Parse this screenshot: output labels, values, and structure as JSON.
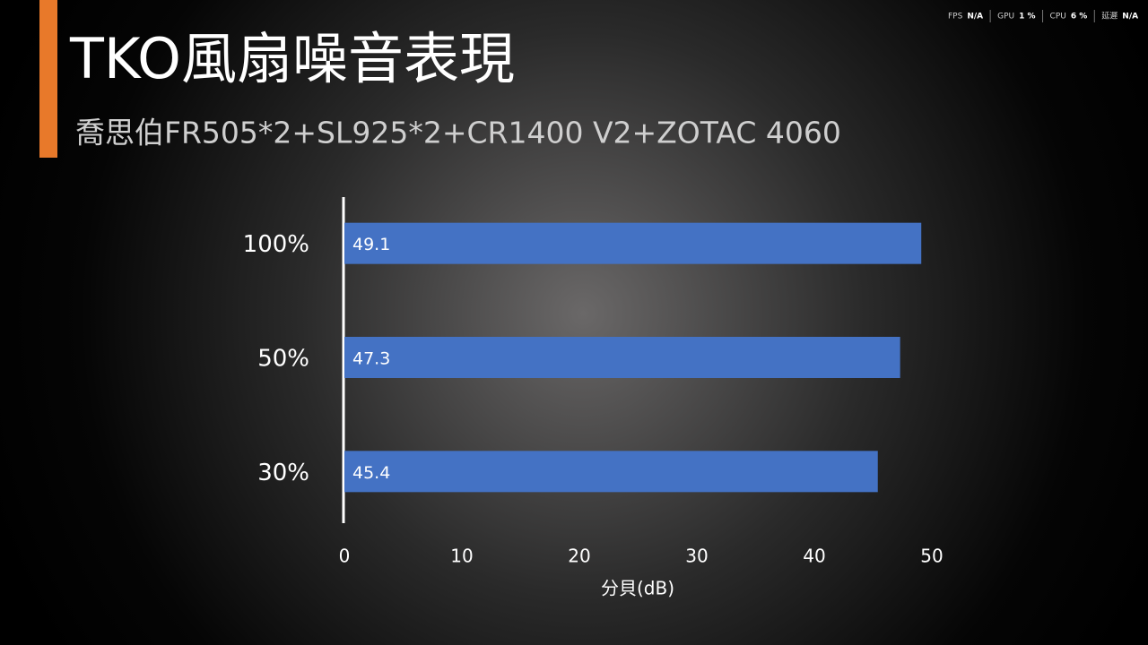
{
  "hud": [
    {
      "label": "FPS",
      "value": "N/A"
    },
    {
      "label": "GPU",
      "value": "1 %"
    },
    {
      "label": "CPU",
      "value": "6 %"
    },
    {
      "label": "延遲",
      "value": "N/A"
    }
  ],
  "chart_data": {
    "type": "bar",
    "orientation": "horizontal",
    "title": "TKO風扇噪音表現",
    "subtitle": "喬思伯FR505*2+SL925*2+CR1400 V2+ZOTAC 4060",
    "x_label": "分貝(dB)",
    "categories": [
      "100%",
      "50%",
      "30%"
    ],
    "values": [
      49.1,
      47.3,
      45.4
    ],
    "color": "#4472c4",
    "xlim": [
      0,
      50
    ],
    "xticks": [
      0,
      10,
      20,
      30,
      40,
      50
    ],
    "grid": false
  }
}
